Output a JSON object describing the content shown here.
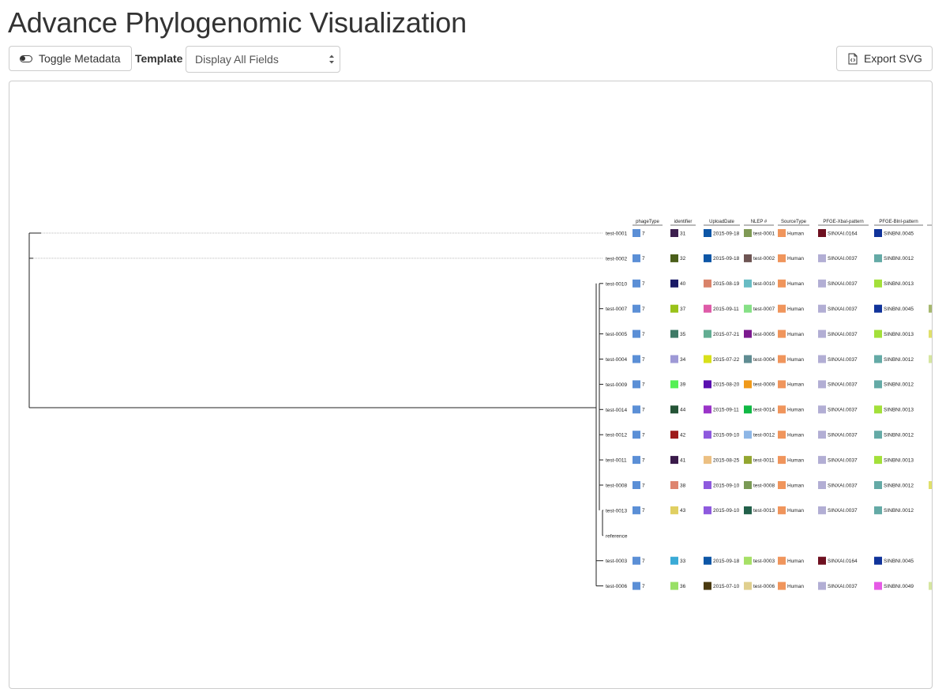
{
  "header": {
    "title": "Advance Phylogenomic Visualization"
  },
  "toolbar": {
    "toggle_label": "Toggle Metadata",
    "template_label": "Template",
    "template_value": "Display All Fields",
    "export_label": "Export SVG",
    "toggle_icon": "toggle-icon",
    "export_icon": "file-code-icon"
  },
  "metadata_columns": [
    "phageType",
    "identifier",
    "UploadDate",
    "NLEP #",
    "SourceType",
    "PFGE-XbaI-pattern",
    "PFGE-BlnI-pattern"
  ],
  "tree_leaves": [
    {
      "name": "test-0001",
      "cells": [
        [
          "7",
          "#5b8fd6"
        ],
        [
          "31",
          "#3d1f4f"
        ],
        [
          "2015-09-18",
          "#0d56a6"
        ],
        [
          "test-0001",
          "#7f9a55"
        ],
        [
          "Human",
          "#f0955c"
        ],
        [
          "SINXAI.0164",
          "#6e1020"
        ],
        [
          "SINBNI.0045",
          "#10339a"
        ]
      ]
    },
    {
      "name": "test-0002",
      "cells": [
        [
          "7",
          "#5b8fd6"
        ],
        [
          "32",
          "#4a5e1a"
        ],
        [
          "2015-09-18",
          "#0d56a6"
        ],
        [
          "test-0002",
          "#6e5553"
        ],
        [
          "Human",
          "#f0955c"
        ],
        [
          "SINXAI.0037",
          "#b2aed4"
        ],
        [
          "SINBNI.0012",
          "#64aaa6"
        ]
      ]
    },
    {
      "name": "test-0010",
      "cells": [
        [
          "7",
          "#5b8fd6"
        ],
        [
          "40",
          "#1a1a66"
        ],
        [
          "2015-08-19",
          "#d9836a"
        ],
        [
          "test-0010",
          "#68bcc4"
        ],
        [
          "Human",
          "#f0955c"
        ],
        [
          "SINXAI.0037",
          "#b2aed4"
        ],
        [
          "SINBNI.0013",
          "#a3e03a"
        ]
      ]
    },
    {
      "name": "test-0007",
      "cells": [
        [
          "7",
          "#5b8fd6"
        ],
        [
          "37",
          "#99c21a"
        ],
        [
          "2015-09-11",
          "#de5ba8"
        ],
        [
          "test-0007",
          "#86e086"
        ],
        [
          "Human",
          "#f0955c"
        ],
        [
          "SINXAI.0037",
          "#b2aed4"
        ],
        [
          "SINBNI.0045",
          "#10339a"
        ]
      ]
    },
    {
      "name": "test-0005",
      "cells": [
        [
          "7",
          "#5b8fd6"
        ],
        [
          "35",
          "#3e7a66"
        ],
        [
          "2015-07-21",
          "#62ad92"
        ],
        [
          "test-0005",
          "#7c1a8f"
        ],
        [
          "Human",
          "#f0955c"
        ],
        [
          "SINXAI.0037",
          "#b2aed4"
        ],
        [
          "SINBNI.0013",
          "#a3e03a"
        ]
      ]
    },
    {
      "name": "test-0004",
      "cells": [
        [
          "7",
          "#5b8fd6"
        ],
        [
          "34",
          "#9e99d6"
        ],
        [
          "2015-07-22",
          "#d8e01a"
        ],
        [
          "test-0004",
          "#5f8c92"
        ],
        [
          "Human",
          "#f0955c"
        ],
        [
          "SINXAI.0037",
          "#b2aed4"
        ],
        [
          "SINBNI.0012",
          "#64aaa6"
        ]
      ]
    },
    {
      "name": "test-0009",
      "cells": [
        [
          "7",
          "#5b8fd6"
        ],
        [
          "39",
          "#55f055"
        ],
        [
          "2015-08-20",
          "#5a10b0"
        ],
        [
          "test-0009",
          "#f09a1a"
        ],
        [
          "Human",
          "#f0955c"
        ],
        [
          "SINXAI.0037",
          "#b2aed4"
        ],
        [
          "SINBNI.0012",
          "#64aaa6"
        ]
      ]
    },
    {
      "name": "test-0014",
      "cells": [
        [
          "7",
          "#5b8fd6"
        ],
        [
          "44",
          "#245436"
        ],
        [
          "2015-09-11",
          "#9a33c8"
        ],
        [
          "test-0014",
          "#10b844"
        ],
        [
          "Human",
          "#f0955c"
        ],
        [
          "SINXAI.0037",
          "#b2aed4"
        ],
        [
          "SINBNI.0013",
          "#a3e03a"
        ]
      ]
    },
    {
      "name": "test-0012",
      "cells": [
        [
          "7",
          "#5b8fd6"
        ],
        [
          "42",
          "#9e1a1a"
        ],
        [
          "2015-09-10",
          "#8e5ade"
        ],
        [
          "test-0012",
          "#8db6e6"
        ],
        [
          "Human",
          "#f0955c"
        ],
        [
          "SINXAI.0037",
          "#b2aed4"
        ],
        [
          "SINBNI.0012",
          "#64aaa6"
        ]
      ]
    },
    {
      "name": "test-0011",
      "cells": [
        [
          "7",
          "#5b8fd6"
        ],
        [
          "41",
          "#3a1a4a"
        ],
        [
          "2015-08-25",
          "#ecc082"
        ],
        [
          "test-0011",
          "#93a630"
        ],
        [
          "Human",
          "#f0955c"
        ],
        [
          "SINXAI.0037",
          "#b2aed4"
        ],
        [
          "SINBNI.0013",
          "#a3e03a"
        ]
      ]
    },
    {
      "name": "test-0008",
      "cells": [
        [
          "7",
          "#5b8fd6"
        ],
        [
          "38",
          "#de8570"
        ],
        [
          "2015-09-10",
          "#8e5ade"
        ],
        [
          "test-0008",
          "#7a9a55"
        ],
        [
          "Human",
          "#f0955c"
        ],
        [
          "SINXAI.0037",
          "#b2aed4"
        ],
        [
          "SINBNI.0012",
          "#64aaa6"
        ]
      ]
    },
    {
      "name": "test-0013",
      "cells": [
        [
          "7",
          "#5b8fd6"
        ],
        [
          "43",
          "#e0cf62"
        ],
        [
          "2015-09-10",
          "#8e5ade"
        ],
        [
          "test-0013",
          "#22604a"
        ],
        [
          "Human",
          "#f0955c"
        ],
        [
          "SINXAI.0037",
          "#b2aed4"
        ],
        [
          "SINBNI.0012",
          "#64aaa6"
        ]
      ]
    },
    {
      "name": "reference",
      "cells": []
    },
    {
      "name": "test-0003",
      "cells": [
        [
          "7",
          "#5b8fd6"
        ],
        [
          "33",
          "#3aaad6"
        ],
        [
          "2015-09-18",
          "#0d56a6"
        ],
        [
          "test-0003",
          "#a6e066"
        ],
        [
          "Human",
          "#f0955c"
        ],
        [
          "SINXAI.0164",
          "#6e1020"
        ],
        [
          "SINBNI.0045",
          "#10339a"
        ]
      ]
    },
    {
      "name": "test-0006",
      "cells": [
        [
          "7",
          "#5b8fd6"
        ],
        [
          "36",
          "#99e066"
        ],
        [
          "2015-07-10",
          "#4a3a10"
        ],
        [
          "test-0006",
          "#e0cf8e"
        ],
        [
          "Human",
          "#f0955c"
        ],
        [
          "SINXAI.0037",
          "#b2aed4"
        ],
        [
          "SINBNI.0049",
          "#e65ae6"
        ]
      ]
    }
  ],
  "overflow_column": [
    "",
    "",
    "",
    "#a6b86e",
    "#e0e06a",
    "#d6e6a0",
    "",
    "",
    "",
    "",
    "#e0e06a",
    "",
    "",
    "",
    "#d6e6a0"
  ]
}
